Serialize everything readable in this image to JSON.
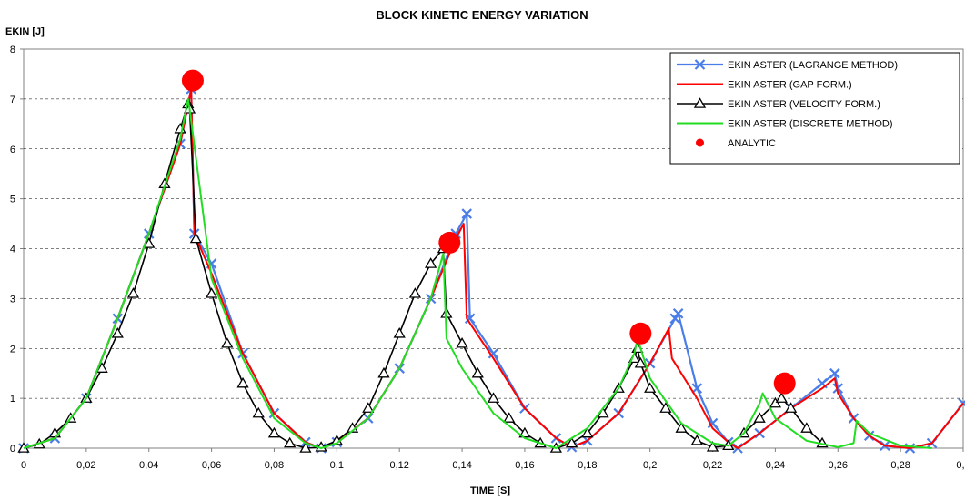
{
  "chart_data": {
    "type": "line",
    "title": "BLOCK KINETIC ENERGY VARIATION",
    "xlabel": "TIME [S]",
    "ylabel": "EKIN [J]",
    "xlim": [
      0,
      0.3
    ],
    "ylim": [
      0,
      8
    ],
    "x_ticks": [
      "0",
      "0,02",
      "0,04",
      "0,06",
      "0,08",
      "0,1",
      "0,12",
      "0,14",
      "0,16",
      "0,18",
      "0,2",
      "0,22",
      "0,24",
      "0,26",
      "0,28",
      "0,3"
    ],
    "y_ticks": [
      "0",
      "1",
      "2",
      "3",
      "4",
      "5",
      "6",
      "7",
      "8"
    ],
    "grid": "horizontal dashed",
    "legend_position": "top-right",
    "series": [
      {
        "name": "EKIN ASTER (LAGRANGE METHOD)",
        "color": "#4a7de8",
        "marker": "x",
        "x": [
          0,
          0.01,
          0.02,
          0.03,
          0.04,
          0.05,
          0.0535,
          0.0545,
          0.06,
          0.07,
          0.08,
          0.09,
          0.095,
          0.1,
          0.11,
          0.12,
          0.13,
          0.138,
          0.1415,
          0.1425,
          0.15,
          0.16,
          0.17,
          0.175,
          0.18,
          0.19,
          0.2,
          0.208,
          0.209,
          0.215,
          0.22,
          0.225,
          0.228,
          0.235,
          0.245,
          0.255,
          0.259,
          0.26,
          0.265,
          0.27,
          0.275,
          0.283,
          0.29,
          0.3
        ],
        "y": [
          0,
          0.2,
          1.0,
          2.6,
          4.3,
          6.1,
          7.2,
          4.3,
          3.7,
          1.9,
          0.7,
          0.12,
          0,
          0.12,
          0.6,
          1.6,
          3.0,
          4.3,
          4.7,
          2.6,
          1.9,
          0.8,
          0.2,
          0.02,
          0.15,
          0.7,
          1.7,
          2.6,
          2.7,
          1.2,
          0.5,
          0.12,
          0,
          0.3,
          0.8,
          1.3,
          1.5,
          1.2,
          0.6,
          0.25,
          0.05,
          0,
          0.1,
          0.9
        ]
      },
      {
        "name": "EKIN ASTER (GAP FORM.)",
        "color": "#ff0000",
        "marker": "none",
        "x": [
          0,
          0.01,
          0.02,
          0.03,
          0.04,
          0.05,
          0.0535,
          0.0545,
          0.06,
          0.07,
          0.08,
          0.09,
          0.095,
          0.1,
          0.11,
          0.12,
          0.13,
          0.138,
          0.1405,
          0.1415,
          0.15,
          0.16,
          0.17,
          0.175,
          0.18,
          0.19,
          0.2,
          0.206,
          0.207,
          0.215,
          0.22,
          0.225,
          0.228,
          0.235,
          0.245,
          0.255,
          0.259,
          0.26,
          0.265,
          0.27,
          0.275,
          0.283,
          0.29,
          0.3
        ],
        "y": [
          0,
          0.2,
          1.0,
          2.6,
          4.3,
          6.1,
          7.2,
          4.3,
          3.5,
          1.9,
          0.7,
          0.12,
          0,
          0.12,
          0.6,
          1.6,
          3.0,
          4.2,
          4.5,
          2.6,
          1.8,
          0.8,
          0.2,
          0.02,
          0.15,
          0.7,
          1.7,
          2.4,
          1.8,
          1.0,
          0.4,
          0.12,
          0,
          0.3,
          0.8,
          1.2,
          1.4,
          1.1,
          0.6,
          0.25,
          0.05,
          0,
          0.1,
          0.9
        ]
      },
      {
        "name": "EKIN ASTER (VELOCITY FORM.)",
        "color": "#000000",
        "marker": "triangle",
        "x": [
          0,
          0.005,
          0.01,
          0.015,
          0.02,
          0.025,
          0.03,
          0.035,
          0.04,
          0.045,
          0.05,
          0.0525,
          0.053,
          0.055,
          0.06,
          0.065,
          0.07,
          0.075,
          0.08,
          0.085,
          0.09,
          0.095,
          0.1,
          0.105,
          0.11,
          0.115,
          0.12,
          0.125,
          0.13,
          0.134,
          0.135,
          0.14,
          0.145,
          0.15,
          0.155,
          0.16,
          0.165,
          0.17,
          0.175,
          0.18,
          0.185,
          0.19,
          0.195,
          0.196,
          0.197,
          0.2,
          0.205,
          0.21,
          0.215,
          0.22,
          0.225,
          0.23,
          0.235,
          0.24,
          0.242,
          0.245,
          0.25,
          0.255
        ],
        "y": [
          0,
          0.08,
          0.3,
          0.6,
          1.0,
          1.6,
          2.3,
          3.1,
          4.1,
          5.3,
          6.4,
          6.9,
          6.8,
          4.2,
          3.1,
          2.1,
          1.3,
          0.7,
          0.3,
          0.1,
          0,
          0.02,
          0.15,
          0.4,
          0.8,
          1.5,
          2.3,
          3.1,
          3.7,
          4.0,
          2.7,
          2.1,
          1.5,
          1.0,
          0.6,
          0.3,
          0.1,
          0,
          0.1,
          0.3,
          0.7,
          1.2,
          1.8,
          2.0,
          1.7,
          1.2,
          0.8,
          0.4,
          0.15,
          0.02,
          0.05,
          0.3,
          0.6,
          0.9,
          1.0,
          0.8,
          0.4,
          0.1
        ]
      },
      {
        "name": "EKIN ASTER (DISCRETE METHOD)",
        "color": "#22dd22",
        "marker": "none",
        "x": [
          0,
          0.01,
          0.02,
          0.03,
          0.04,
          0.05,
          0.0525,
          0.053,
          0.06,
          0.07,
          0.08,
          0.09,
          0.095,
          0.1,
          0.11,
          0.12,
          0.13,
          0.134,
          0.135,
          0.14,
          0.15,
          0.16,
          0.17,
          0.18,
          0.19,
          0.195,
          0.196,
          0.2,
          0.21,
          0.22,
          0.225,
          0.23,
          0.235,
          0.236,
          0.24,
          0.25,
          0.26,
          0.265,
          0.266,
          0.27,
          0.28,
          0.29
        ],
        "y": [
          0,
          0.2,
          1.0,
          2.6,
          4.3,
          6.2,
          7.0,
          6.8,
          3.4,
          1.8,
          0.6,
          0.1,
          0,
          0.1,
          0.6,
          1.6,
          3.0,
          3.9,
          2.2,
          1.6,
          0.7,
          0.2,
          0,
          0.4,
          1.2,
          1.9,
          2.2,
          1.4,
          0.5,
          0.1,
          0.05,
          0.3,
          0.9,
          1.1,
          0.6,
          0.15,
          0.02,
          0.1,
          0.55,
          0.3,
          0.05,
          0
        ]
      },
      {
        "name": "ANALYTIC",
        "color": "#ff0000",
        "marker": "dot",
        "points_only": true,
        "x": [
          0.054,
          0.136,
          0.197,
          0.243
        ],
        "y": [
          7.37,
          4.12,
          2.3,
          1.3
        ]
      }
    ]
  }
}
